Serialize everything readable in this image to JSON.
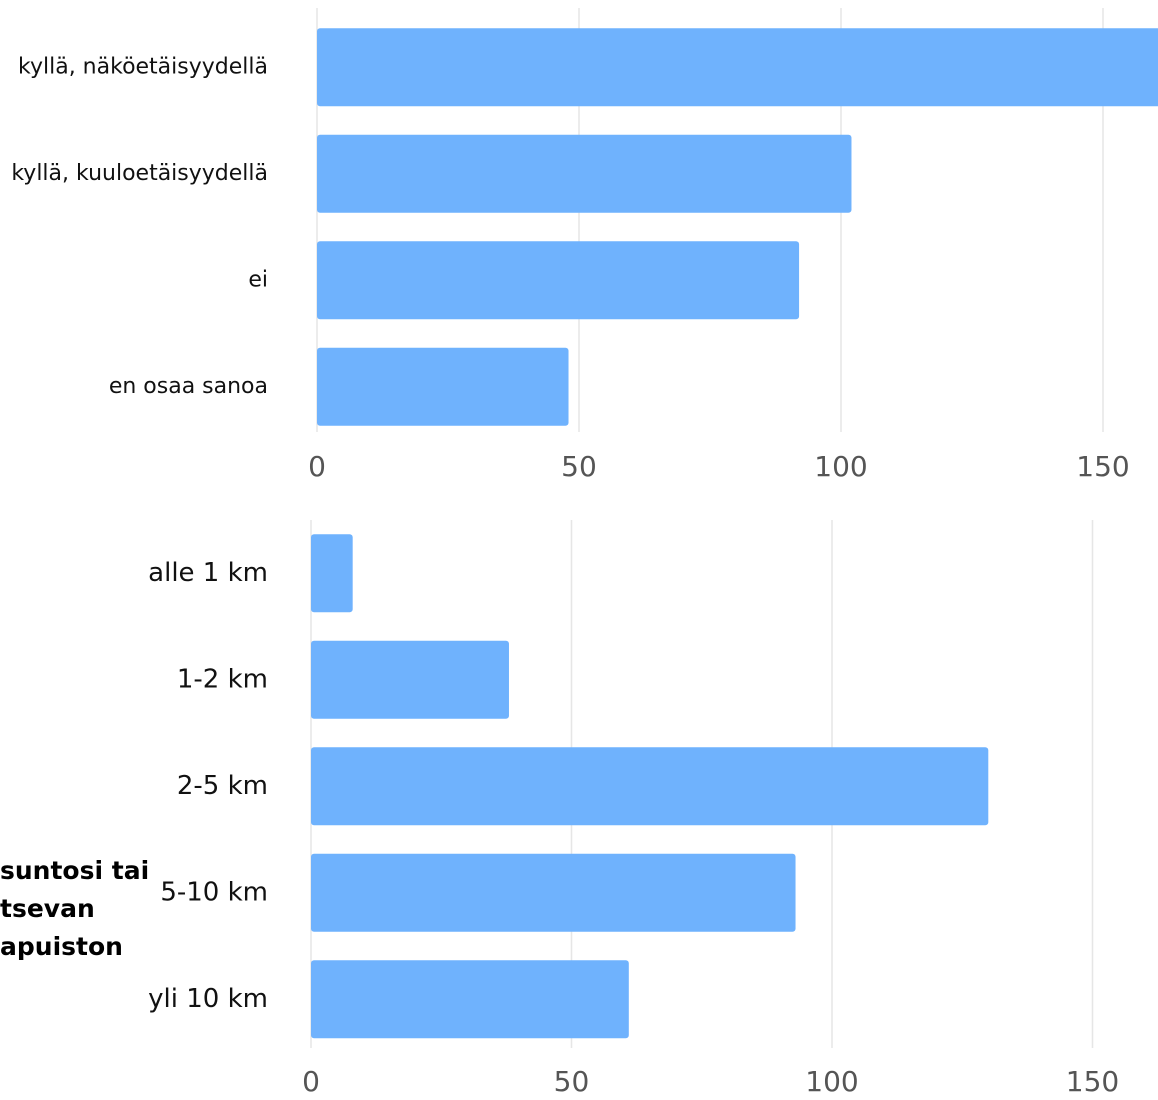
{
  "chart_data": [
    {
      "type": "bar",
      "orientation": "horizontal",
      "categories": [
        "kyllä, näköetäisyydellä",
        "kyllä, kuuloetäisyydellä",
        "ei",
        "en osaa sanoa"
      ],
      "values": [
        162,
        102,
        92,
        48
      ],
      "xlim": [
        0,
        160
      ],
      "xticks": [
        0,
        50,
        100,
        150
      ],
      "xtick_labels": [
        "0",
        "50",
        "100",
        "150"
      ],
      "grid": true,
      "bar_color": "#6fb2fd",
      "grid_color": "#e6e6e6"
    },
    {
      "type": "bar",
      "orientation": "horizontal",
      "categories": [
        "alle 1 km",
        "1-2 km",
        "2-5 km",
        "5-10 km",
        "yli 10 km"
      ],
      "values": [
        8,
        38,
        130,
        93,
        61
      ],
      "xlim": [
        0,
        163
      ],
      "xticks": [
        0,
        50,
        100,
        150
      ],
      "xtick_labels": [
        "0",
        "50",
        "100",
        "150"
      ],
      "grid": true,
      "bar_color": "#6fb2fd",
      "grid_color": "#e6e6e6"
    }
  ],
  "side_text": [
    "suntosi tai",
    "tsevan",
    "apuiston"
  ]
}
